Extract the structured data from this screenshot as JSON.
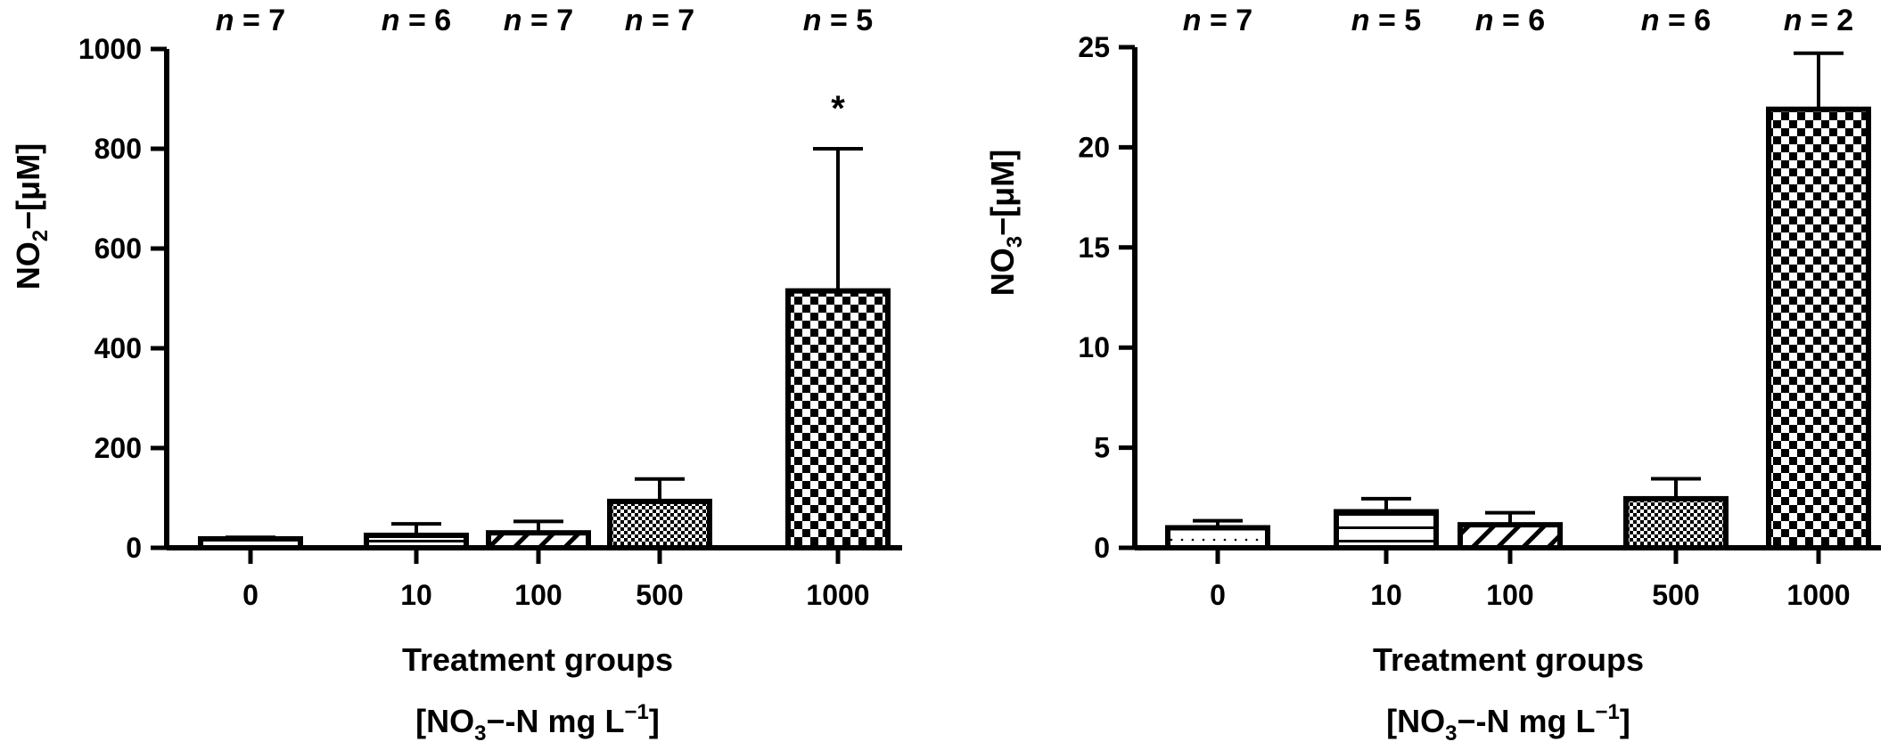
{
  "chart_data": [
    {
      "type": "bar",
      "panel": "left",
      "categories": [
        "0",
        "10",
        "100",
        "500",
        "1000"
      ],
      "values": [
        18,
        25,
        30,
        93,
        515
      ],
      "errors": [
        3,
        23,
        23,
        45,
        285
      ],
      "n_labels": [
        "n = 7",
        "n = 6",
        "n = 7",
        "n = 7",
        "n = 5"
      ],
      "annotations": [
        "",
        "",
        "",
        "",
        "*"
      ],
      "patterns": [
        "dots",
        "hlines",
        "diag",
        "finecheck",
        "check"
      ],
      "ylabel_main": "NO",
      "ylabel_sub": "2",
      "ylabel_sup": "−",
      "ylabel_tail": "[μM]",
      "xlabel": "Treatment groups",
      "xlabel2_a": "[NO",
      "xlabel2_sub": "3",
      "xlabel2_sup": "−",
      "xlabel2_b": "-N mg L",
      "xlabel2_sup2": "−1",
      "xlabel2_c": "]",
      "yticks": [
        "0",
        "200",
        "400",
        "600",
        "800",
        "1000"
      ],
      "ylim": [
        0,
        1000
      ]
    },
    {
      "type": "bar",
      "panel": "right",
      "categories": [
        "0",
        "10",
        "100",
        "500",
        "1000"
      ],
      "values": [
        1.0,
        1.8,
        1.15,
        2.45,
        21.9
      ],
      "errors": [
        0.35,
        0.65,
        0.6,
        1.0,
        2.8
      ],
      "n_labels": [
        "n = 7",
        "n = 5",
        "n = 6",
        "n = 6",
        "n = 2"
      ],
      "annotations": [
        "",
        "",
        "",
        "",
        ""
      ],
      "patterns": [
        "dots",
        "hlines",
        "diag",
        "finecheck",
        "check"
      ],
      "ylabel_main": "NO",
      "ylabel_sub": "3",
      "ylabel_sup": "−",
      "ylabel_tail": "[μM]",
      "xlabel": "Treatment groups",
      "xlabel2_a": "[NO",
      "xlabel2_sub": "3",
      "xlabel2_sup": "−",
      "xlabel2_b": "-N mg L",
      "xlabel2_sup2": "−1",
      "xlabel2_c": "]",
      "yticks": [
        "0",
        "5",
        "10",
        "15",
        "20",
        "25"
      ],
      "ylim": [
        0,
        25
      ]
    }
  ]
}
